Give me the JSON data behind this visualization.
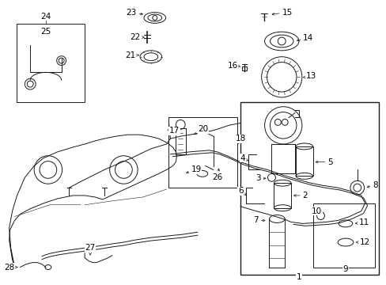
{
  "background_color": "#ffffff",
  "line_color": "#1a1a1a",
  "fig_width": 4.89,
  "fig_height": 3.6,
  "dpi": 100,
  "label_fontsize": 7.5,
  "small_fontsize": 6.5
}
